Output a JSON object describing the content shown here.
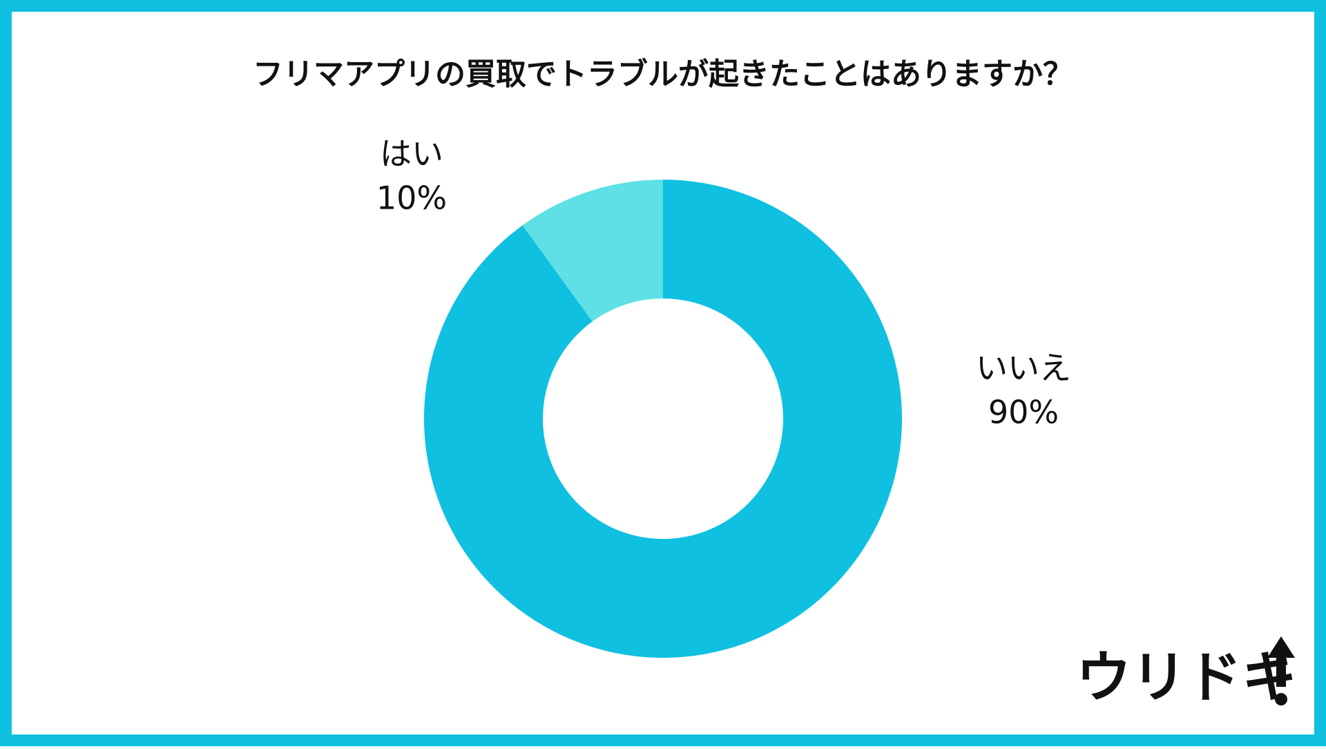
{
  "chart_data": {
    "type": "donut",
    "title": "フリマアプリの買取でトラブルが起きたことはありますか？",
    "categories": [
      "いいえ",
      "はい"
    ],
    "values": [
      90,
      10
    ],
    "value_labels": [
      "90%",
      "10%"
    ],
    "colors": [
      "#0fc0e0",
      "#5ee0e6"
    ]
  },
  "logo": "ウリドキ"
}
